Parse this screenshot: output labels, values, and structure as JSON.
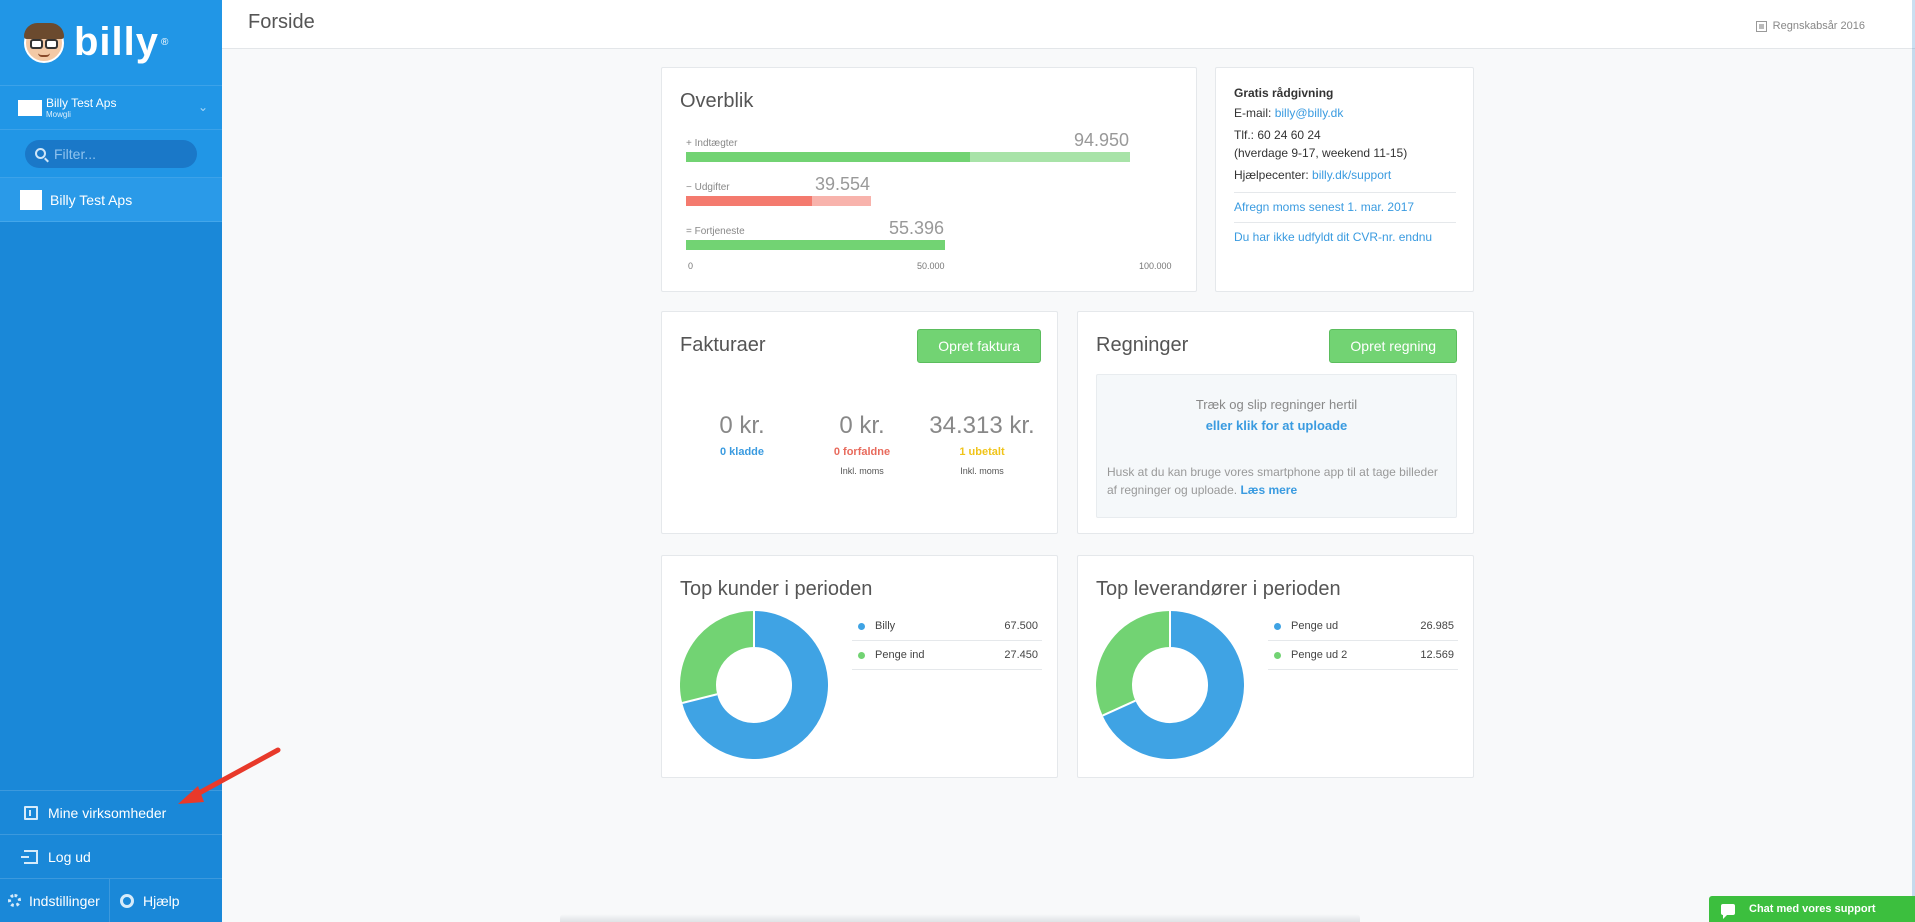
{
  "sidebar": {
    "logo_text": "billy",
    "logo_mark": "®",
    "company": {
      "name": "Billy Test Aps",
      "sub": "Mowgli"
    },
    "filter": {
      "placeholder": "Filter..."
    },
    "active_item": "Billy Test Aps",
    "bottom": {
      "my_companies": "Mine virksomheder",
      "logout": "Log ud",
      "settings": "Indstillinger",
      "help": "Hjælp"
    },
    "icons": [
      "search-icon",
      "chevron-down-icon",
      "building-icon",
      "logout-icon",
      "gear-icon",
      "help-icon"
    ]
  },
  "header": {
    "title": "Forside",
    "fiscal_year": "Regnskabsår 2016"
  },
  "overview": {
    "title": "Overblik",
    "rows": [
      {
        "sign": "+",
        "label": "Indtægter",
        "value": "94.950"
      },
      {
        "sign": "−",
        "label": "Udgifter",
        "value": "39.554"
      },
      {
        "sign": "=",
        "label": "Fortjeneste",
        "value": "55.396"
      }
    ],
    "axis": [
      "0",
      "50.000",
      "100.000"
    ]
  },
  "support": {
    "title": "Gratis rådgivning",
    "email_label": "E-mail:",
    "email": "billy@billy.dk",
    "phone": "Tlf.: 60 24 60 24",
    "hours": "(hverdage 9-17, weekend 11-15)",
    "help_label": "Hjælpecenter:",
    "help_link": "billy.dk/support",
    "vat_link": "Afregn moms senest 1. mar. 2017",
    "cvr_link": "Du har ikke udfyldt dit CVR-nr. endnu"
  },
  "invoices": {
    "title": "Fakturaer",
    "button": "Opret faktura",
    "stats": [
      {
        "amount": "0 kr.",
        "status": "0 kladde",
        "note": "",
        "color": "#3a9be0"
      },
      {
        "amount": "0 kr.",
        "status": "0 forfaldne",
        "note": "Inkl. moms",
        "color": "#e86a5c"
      },
      {
        "amount": "34.313 kr.",
        "status": "1 ubetalt",
        "note": "Inkl. moms",
        "color": "#f0c419"
      }
    ]
  },
  "bills": {
    "title": "Regninger",
    "button": "Opret regning",
    "drop_line1": "Træk og slip regninger hertil",
    "drop_line2": "eller klik for at uploade",
    "note": "Husk at du kan bruge vores smartphone app til at tage billeder af regninger og uploade.",
    "read_more": "Læs mere"
  },
  "top_customers": {
    "title": "Top kunder i perioden",
    "items": [
      {
        "name": "Billy",
        "value": "67.500",
        "color": "#3fa3e4"
      },
      {
        "name": "Penge ind",
        "value": "27.450",
        "color": "#72d373"
      }
    ]
  },
  "top_suppliers": {
    "title": "Top leverandører i perioden",
    "items": [
      {
        "name": "Penge ud",
        "value": "26.985",
        "color": "#3fa3e4"
      },
      {
        "name": "Penge ud 2",
        "value": "12.569",
        "color": "#72d373"
      }
    ]
  },
  "chat": {
    "label": "Chat med vores support"
  },
  "colors": {
    "sidebar": "#1a88d8",
    "green": "#72d373",
    "blue": "#3fa3e4",
    "red": "#f47a6e"
  },
  "chart_data": [
    {
      "type": "bar",
      "title": "Overblik",
      "categories": [
        "Indtægter",
        "Udgifter",
        "Fortjeneste"
      ],
      "values": [
        94950,
        39554,
        55396
      ],
      "xlim": [
        0,
        100000
      ],
      "ticks": [
        "0",
        "50.000",
        "100.000"
      ]
    },
    {
      "type": "pie",
      "title": "Top kunder i perioden",
      "categories": [
        "Billy",
        "Penge ind"
      ],
      "values": [
        67500,
        27450
      ]
    },
    {
      "type": "pie",
      "title": "Top leverandører i perioden",
      "categories": [
        "Penge ud",
        "Penge ud 2"
      ],
      "values": [
        26985,
        12569
      ]
    }
  ]
}
